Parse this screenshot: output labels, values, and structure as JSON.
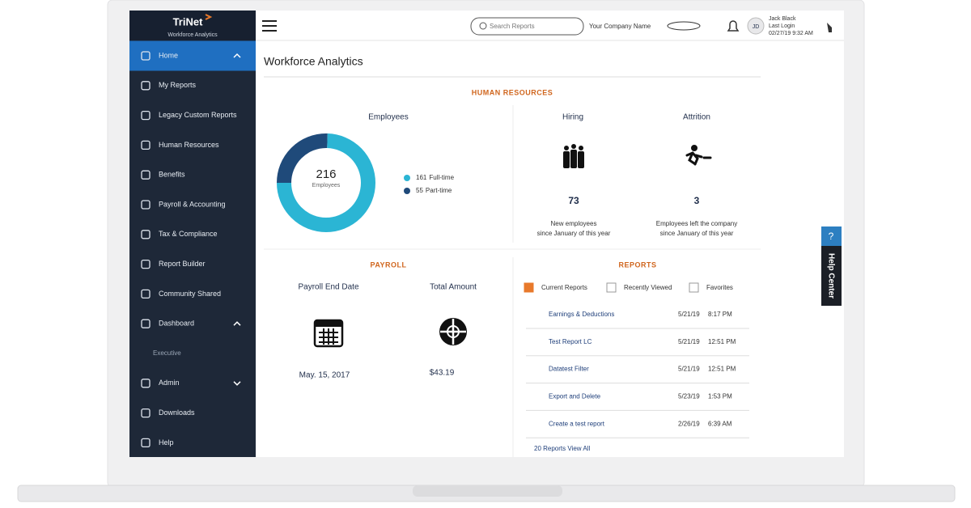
{
  "sidebar": {
    "logo": "TriNet",
    "logo_sub": "Workforce Analytics",
    "menu": [
      {
        "label": "Home",
        "active": true,
        "chevron": "up"
      },
      {
        "label": "My Reports"
      },
      {
        "label": "Legacy Custom Reports"
      },
      {
        "label": "Human Resources"
      },
      {
        "label": "Benefits"
      },
      {
        "label": "Payroll & Accounting"
      },
      {
        "label": "Tax & Compliance"
      },
      {
        "label": "Report Builder"
      },
      {
        "label": "Community Shared"
      },
      {
        "label": "Dashboard",
        "chevron": "up"
      },
      {
        "label": "Executive",
        "sub": true
      },
      {
        "label": "Admin",
        "chevron": "down"
      },
      {
        "label": "Downloads"
      },
      {
        "label": "Help"
      }
    ]
  },
  "topbar": {
    "search_placeholder": "Search Reports",
    "company": "Your Company Name",
    "initials": "JD",
    "user_name": "Jack Black",
    "user_line2": "Last Login",
    "user_line3": "02/27/19 9:32 AM"
  },
  "page_title": "Workforce Analytics",
  "hr": {
    "title": "HUMAN RESOURCES",
    "employees": {
      "title": "Employees",
      "total": 216,
      "total_label": "Employees",
      "segments": [
        {
          "value": 161,
          "name": "Full-time",
          "color": "#2bb5d4"
        },
        {
          "value": 55,
          "name": "Part-time",
          "color": "#1f4a7a"
        }
      ]
    },
    "hiring": {
      "title": "Hiring",
      "value": 73,
      "caption": [
        "New employees",
        "since January of this year"
      ]
    },
    "attrition": {
      "title": "Attrition",
      "value": 3,
      "caption": [
        "Employees left the company",
        "since January of this year"
      ]
    }
  },
  "payroll": {
    "title": "PAYROLL",
    "end_date_label": "Payroll End Date",
    "end_date": "May. 15, 2017",
    "total_label": "Total Amount",
    "total": "$43.19"
  },
  "reports": {
    "title": "REPORTS",
    "tabs": [
      "Current Reports",
      "Recently Viewed",
      "Favorites"
    ],
    "rows": [
      [
        "Earnings & Deductions",
        "5/21/19",
        "8:17 PM"
      ],
      [
        "Test Report LC",
        "5/21/19",
        "12:51 PM"
      ],
      [
        "Datatest Filter",
        "5/21/19",
        "12:51 PM"
      ],
      [
        "Export and Delete",
        "5/23/19",
        "1:53 PM"
      ],
      [
        "Create a test report",
        "2/26/19",
        "6:39 AM"
      ]
    ],
    "footer": "20 Reports View All"
  },
  "help": {
    "icon": "?",
    "label": "Help Center"
  }
}
